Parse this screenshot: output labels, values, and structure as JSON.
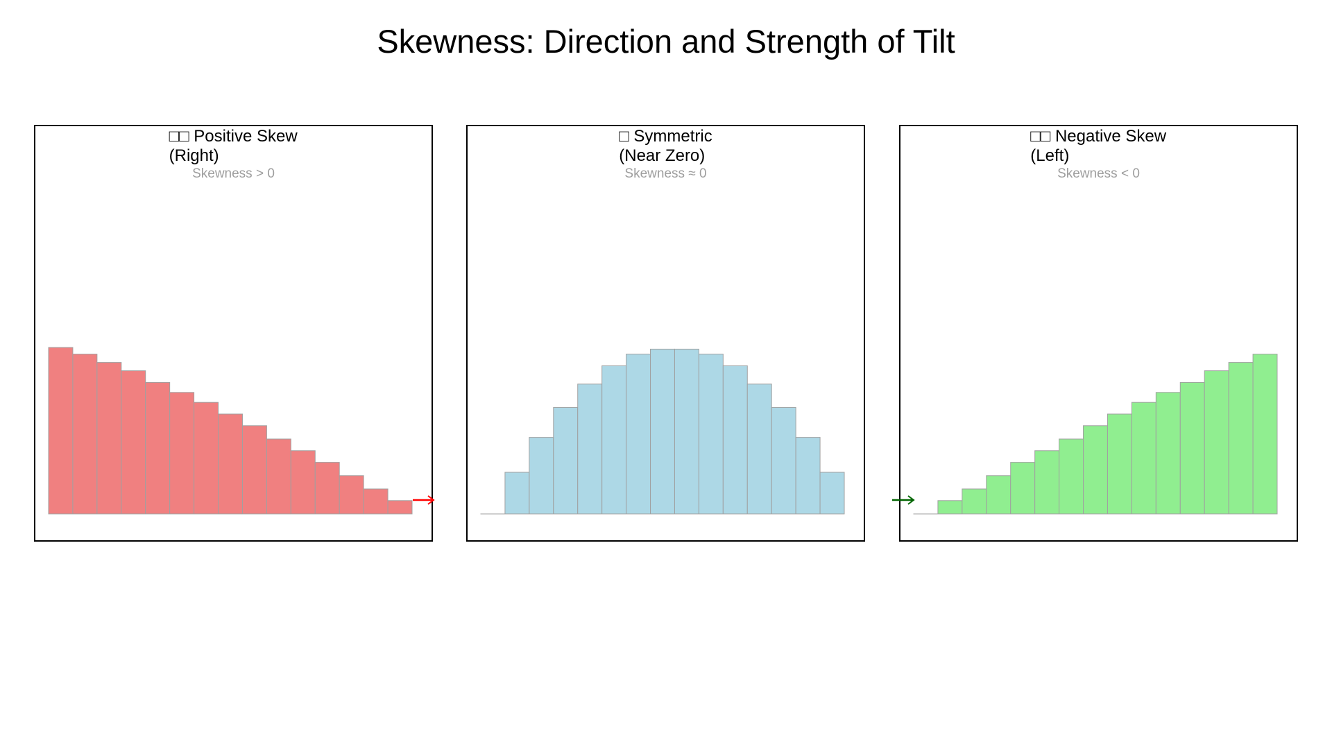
{
  "chart_data": {
    "title": "Skewness: Direction and Strength of Tilt",
    "panels": [
      {
        "type": "bar",
        "title_line1": "□□ Positive Skew",
        "title_line2": "(Right)",
        "subtitle": "Skewness > 0",
        "color": "#F08080",
        "arrow": "right",
        "arrow_color": "#FF0000",
        "values": [
          1.0,
          0.96,
          0.91,
          0.86,
          0.79,
          0.73,
          0.67,
          0.6,
          0.53,
          0.45,
          0.38,
          0.31,
          0.23,
          0.15,
          0.08
        ]
      },
      {
        "type": "bar",
        "title_line1": "□ Symmetric",
        "title_line2": "(Near Zero)",
        "subtitle": "Skewness ≈ 0",
        "color": "#ADD8E6",
        "arrow": "none",
        "values": [
          0,
          0.25,
          0.46,
          0.64,
          0.78,
          0.89,
          0.96,
          0.99,
          0.99,
          0.96,
          0.89,
          0.78,
          0.64,
          0.46,
          0.25
        ]
      },
      {
        "type": "bar",
        "title_line1": "□□ Negative Skew",
        "title_line2": "(Left)",
        "subtitle": "Skewness < 0",
        "color": "#90EE90",
        "arrow": "left",
        "arrow_color": "#006400",
        "values": [
          0,
          0.08,
          0.15,
          0.23,
          0.31,
          0.38,
          0.45,
          0.53,
          0.6,
          0.67,
          0.73,
          0.79,
          0.86,
          0.91,
          0.96
        ]
      }
    ],
    "grid": false,
    "axes_visible": false,
    "bar_edge_color": "#A0A0A0"
  }
}
